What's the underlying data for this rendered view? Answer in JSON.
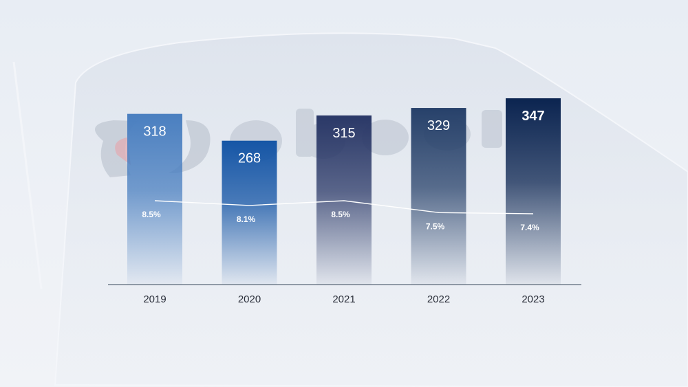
{
  "chart_data": {
    "type": "bar",
    "title": "",
    "xlabel": "",
    "ylabel": "",
    "ylim": [
      0,
      347
    ],
    "categories": [
      "2019",
      "2020",
      "2021",
      "2022",
      "2023"
    ],
    "series": [
      {
        "name": "Value",
        "values": [
          318,
          268,
          315,
          329,
          347
        ],
        "labels": [
          "318",
          "268",
          "315",
          "329",
          "347"
        ]
      },
      {
        "name": "Percent",
        "type": "line",
        "values": [
          8.5,
          8.1,
          8.5,
          7.5,
          7.4
        ],
        "labels": [
          "8.5%",
          "8.1%",
          "8.5%",
          "7.5%",
          "7.4%"
        ]
      }
    ],
    "highlight_index": 4,
    "grid": false,
    "legend": "none"
  },
  "colors": {
    "bar_tops": [
      "#4a7fc0",
      "#1656a6",
      "#2a3867",
      "#27416a",
      "#0b2450"
    ],
    "axis": "#5a6878",
    "line": "#ffffff"
  }
}
